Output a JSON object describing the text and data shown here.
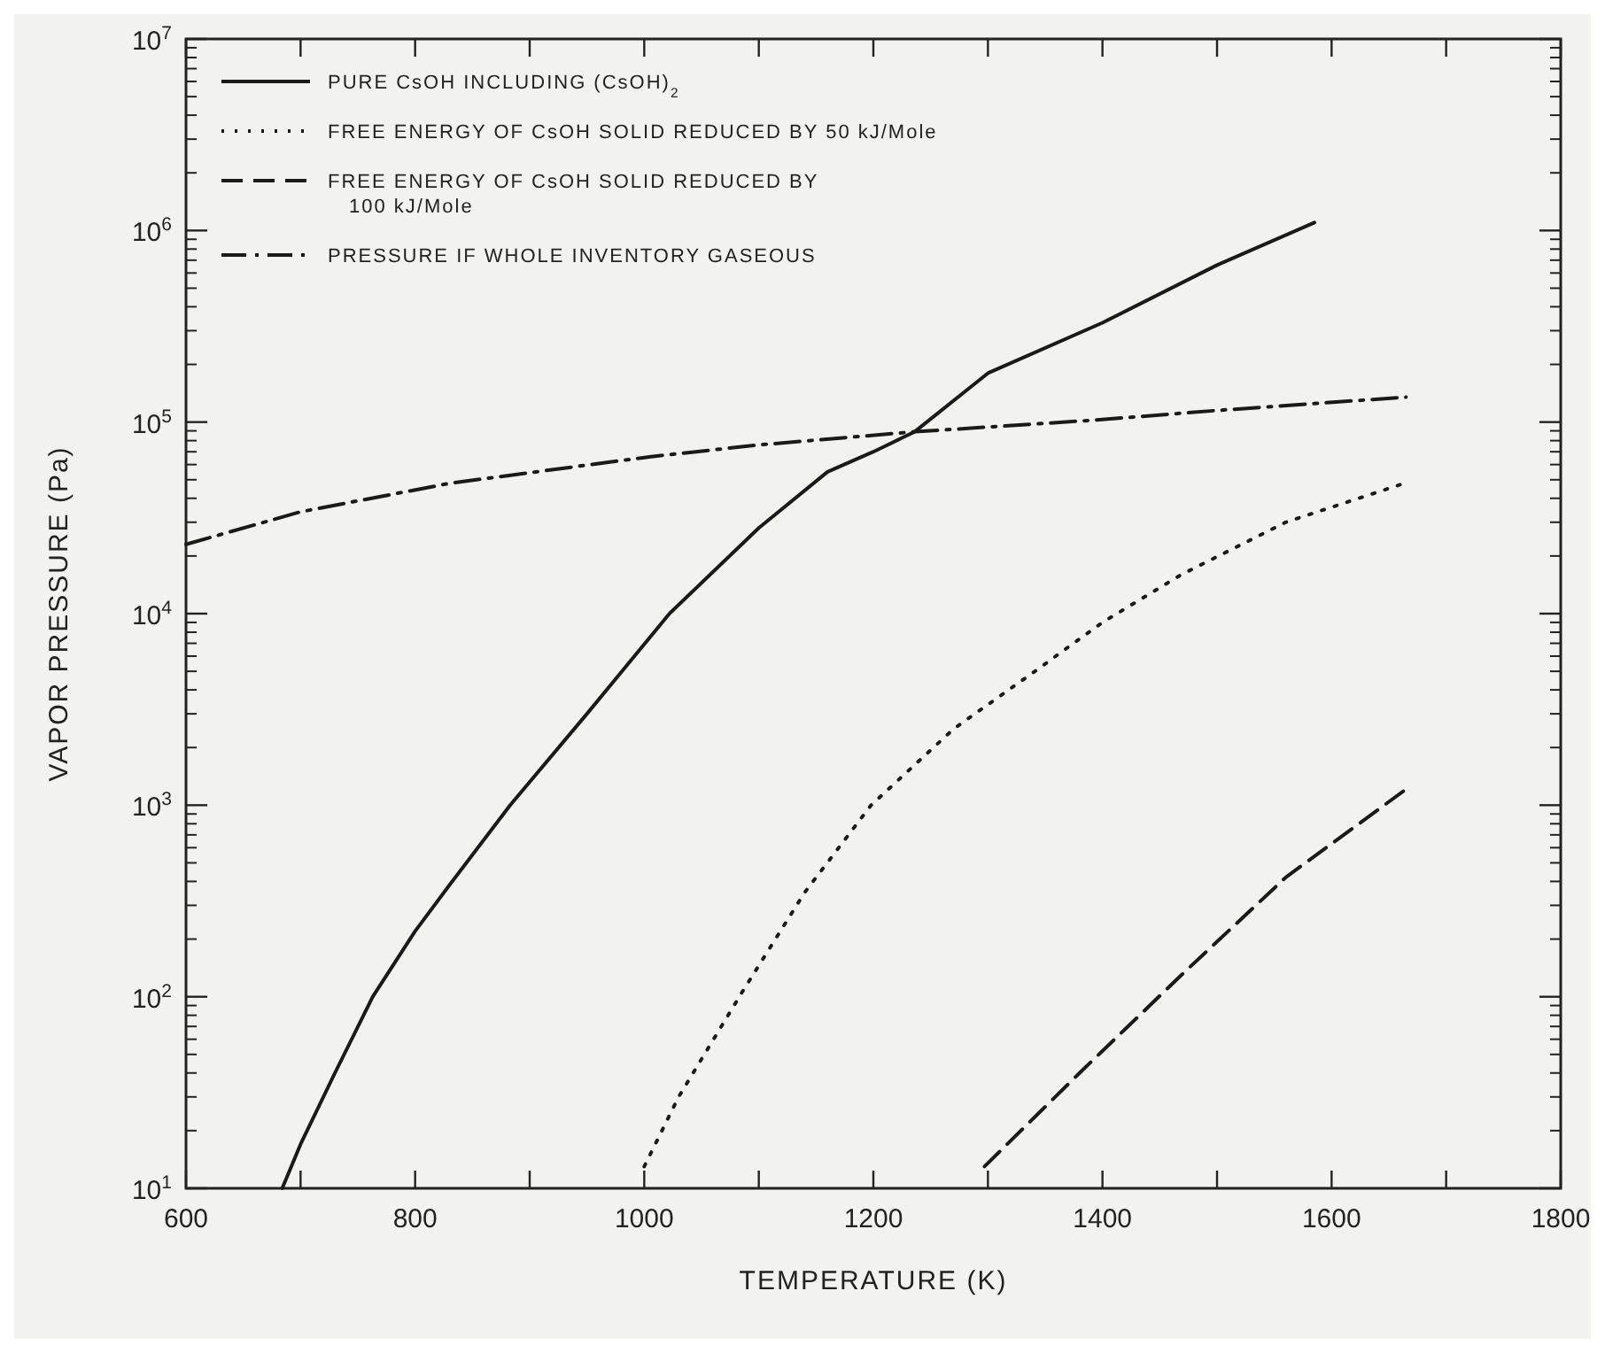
{
  "chart_data": {
    "type": "line",
    "xlabel": "TEMPERATURE (K)",
    "ylabel": "VAPOR PRESSURE (Pa)",
    "log": "y",
    "xlim": [
      600,
      1800
    ],
    "ylim": [
      10,
      10000000
    ],
    "xticks": [
      600,
      {
        "value": 700,
        "label": null
      },
      800,
      {
        "value": 900,
        "label": null
      },
      1000,
      {
        "value": 1100,
        "label": null
      },
      1200,
      {
        "value": 1300,
        "label": null
      },
      1400,
      {
        "value": 1500,
        "label": null
      },
      1600,
      {
        "value": 1700,
        "label": null
      },
      1800
    ],
    "yticks": [
      {
        "value": 10,
        "label": "10$^{1}$"
      },
      {
        "value": 100,
        "label": "10$^{2}$"
      },
      {
        "value": 1000,
        "label": "10$^{3}$"
      },
      {
        "value": 10000,
        "label": "10$^{4}$"
      },
      {
        "value": 100000,
        "label": "10$^{5}$"
      },
      {
        "value": 1000000,
        "label": "10$^{6}$"
      },
      {
        "value": 10000000,
        "label": "10$^{7}$"
      }
    ],
    "grid": false,
    "legend": "top left",
    "series": [
      {
        "name": "PURE CsOH INCLUDING (CsOH)$_{2}$",
        "color": "#1a1a1a",
        "line_style": "solid",
        "x": [
          684,
          700,
          730,
          763,
          800,
          831,
          883,
          950,
          1022,
          1100,
          1160,
          1200,
          1236,
          1300,
          1400,
          1500,
          1585
        ],
        "values": [
          10,
          17,
          40,
          100,
          220,
          390,
          1000,
          3000,
          10000,
          28000,
          55000,
          70000,
          89000,
          180000,
          330000,
          660000,
          1100000
        ]
      },
      {
        "name": "FREE ENERGY OF CsOH SOLID REDUCED BY 50 kJ/Mole",
        "color": "#1a1a1a",
        "line_style": "dotted",
        "x": [
          1000,
          1030,
          1086,
          1140,
          1198,
          1270,
          1341,
          1400,
          1469,
          1560,
          1664
        ],
        "values": [
          13,
          30,
          107,
          350,
          1000,
          2500,
          5000,
          9000,
          16000,
          30000,
          48000
        ]
      },
      {
        "name": "FREE ENERGY OF CsOH SOLID REDUCED BY 100 kJ/Mole",
        "color": "#1a1a1a",
        "line_style": "dashed",
        "x": [
          1297,
          1380,
          1469,
          1560,
          1668
        ],
        "values": [
          13,
          40,
          130,
          420,
          1250
        ]
      },
      {
        "name": "PRESSURE IF WHOLE INVENTORY GASEOUS",
        "color": "#1a1a1a",
        "line_style": "dashdot",
        "x": [
          600,
          700,
          831,
          1006,
          1100,
          1236,
          1389,
          1500,
          1665
        ],
        "values": [
          23000,
          34000,
          48000,
          66000,
          76000,
          89000,
          102000,
          115000,
          135000
        ]
      }
    ]
  }
}
